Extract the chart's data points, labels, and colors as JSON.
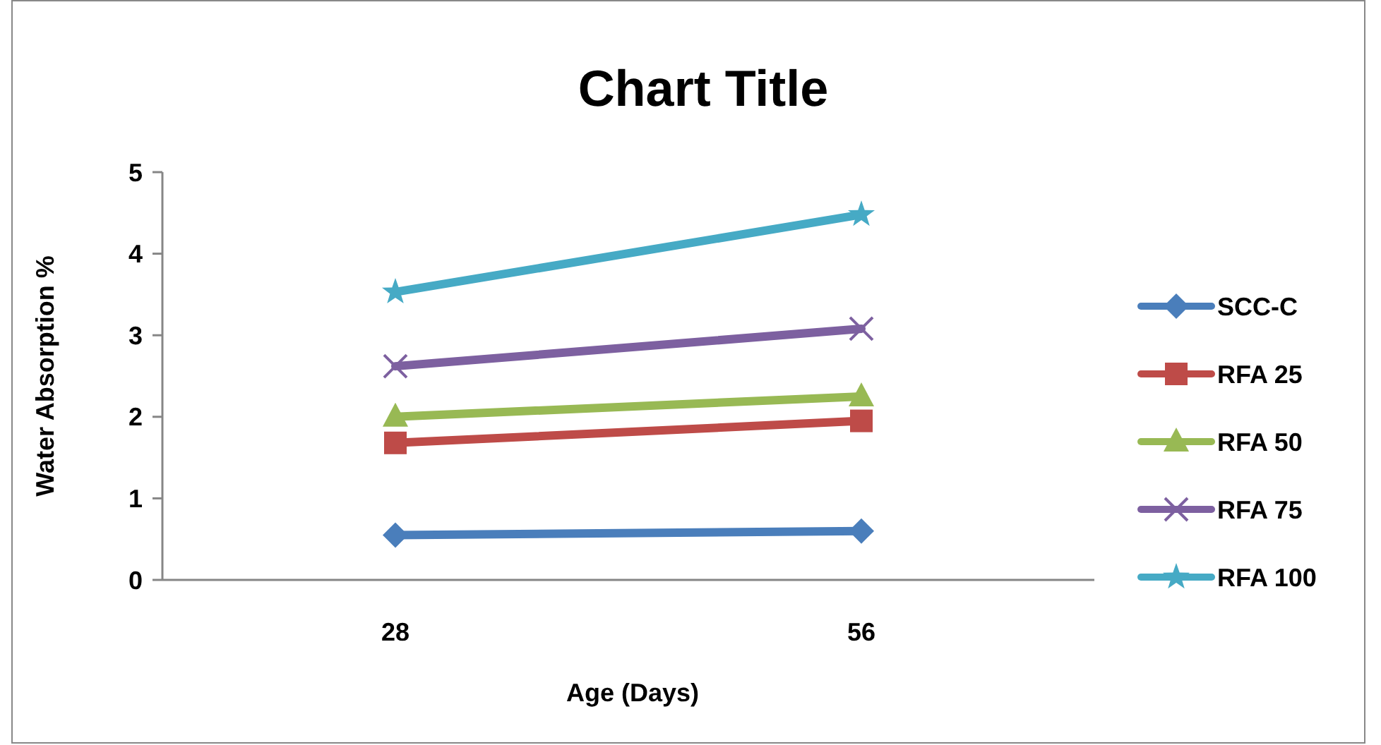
{
  "chart_data": {
    "type": "line",
    "title": "Chart Title",
    "xlabel": "Age (Days)",
    "ylabel": "Water Absorption %",
    "categories": [
      "28",
      "56"
    ],
    "series": [
      {
        "name": "SCC-C",
        "color": "#4a7ebb",
        "values": [
          0.55,
          0.6
        ],
        "marker": "diamond"
      },
      {
        "name": "RFA 25",
        "color": "#be4b48",
        "values": [
          1.68,
          1.95
        ],
        "marker": "square"
      },
      {
        "name": "RFA 50",
        "color": "#98b954",
        "values": [
          2.0,
          2.25
        ],
        "marker": "triangle"
      },
      {
        "name": "RFA 75",
        "color": "#7d60a0",
        "values": [
          2.62,
          3.08
        ],
        "marker": "cross"
      },
      {
        "name": "RFA 100",
        "color": "#46aac5",
        "values": [
          3.53,
          4.48
        ],
        "marker": "star"
      }
    ],
    "ylim": [
      0,
      5
    ],
    "yticks": [
      0,
      1,
      2,
      3,
      4,
      5
    ],
    "legend": "right",
    "line_style": "solid"
  }
}
